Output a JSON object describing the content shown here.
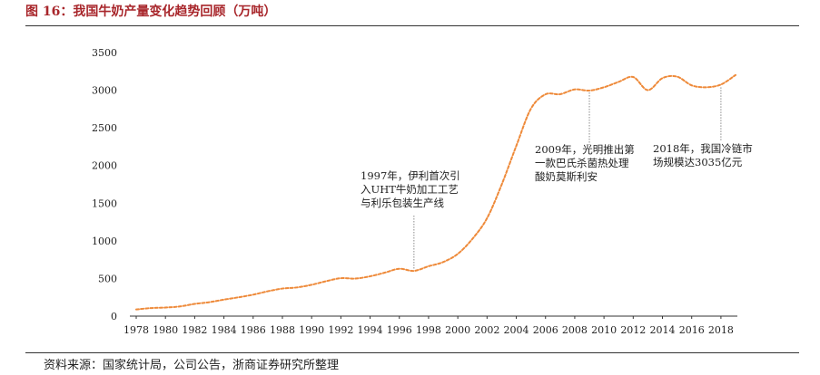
{
  "header": {
    "title": "图 16：我国牛奶产量变化趋势回顾（万吨）"
  },
  "footer": {
    "source": "资料来源：国家统计局，公司公告，浙商证券研究所整理"
  },
  "chart_data": {
    "type": "line",
    "title": "图 16：我国牛奶产量变化趋势回顾（万吨）",
    "xlabel": "",
    "ylabel": "",
    "xlim": [
      1978,
      2019
    ],
    "ylim": [
      0,
      3500
    ],
    "yticks": [
      0,
      500,
      1000,
      1500,
      2000,
      2500,
      3000,
      3500
    ],
    "xticks": [
      1978,
      1980,
      1982,
      1984,
      1986,
      1988,
      1990,
      1992,
      1994,
      1996,
      1998,
      2000,
      2002,
      2004,
      2006,
      2008,
      2010,
      2012,
      2014,
      2016,
      2018
    ],
    "grid": false,
    "legend": "none",
    "color": "#ee8a3a",
    "line_style": "dashed",
    "series": [
      {
        "x": [
          1978,
          1979,
          1980,
          1981,
          1982,
          1983,
          1984,
          1985,
          1986,
          1987,
          1988,
          1989,
          1990,
          1991,
          1992,
          1993,
          1994,
          1995,
          1996,
          1997,
          1998,
          1999,
          2000,
          2001,
          2002,
          2003,
          2004,
          2005,
          2006,
          2007,
          2008,
          2009,
          2010,
          2011,
          2012,
          2013,
          2014,
          2015,
          2016,
          2017,
          2018,
          2019
        ],
        "values": [
          88,
          107,
          114,
          129,
          162,
          185,
          219,
          250,
          285,
          330,
          366,
          381,
          416,
          464,
          504,
          499,
          529,
          577,
          629,
          601,
          662,
          718,
          827,
          1026,
          1300,
          1746,
          2260,
          2753,
          2945,
          2947,
          3010,
          2995,
          3039,
          3110,
          3175,
          3001,
          3160,
          3180,
          3064,
          3039,
          3075,
          3201
        ]
      }
    ],
    "annotations": [
      {
        "x": 1997,
        "lines": [
          "1997年，伊利首次引",
          "入UHT牛奶加工工艺",
          "与利乐包装生产线"
        ]
      },
      {
        "x": 2009,
        "lines": [
          "2009年，光明推出第",
          "一款巴氏杀菌热处理",
          "酸奶莫斯利安"
        ]
      },
      {
        "x": 2018,
        "lines": [
          "2018年，我国冷链市",
          "场规模达3035亿元"
        ]
      }
    ]
  }
}
